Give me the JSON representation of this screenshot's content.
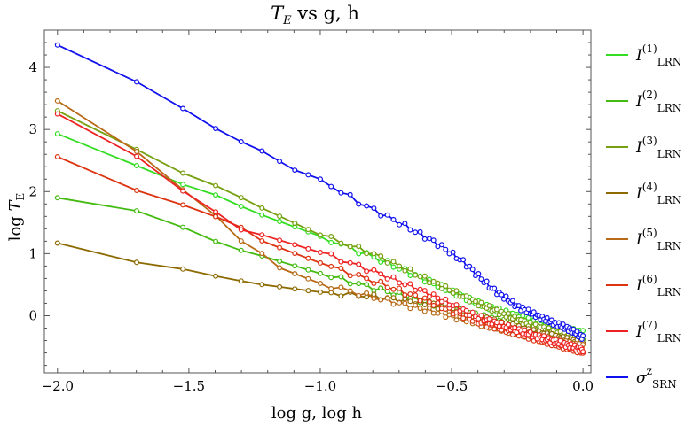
{
  "chart_data": {
    "type": "line",
    "title": {
      "main": "T",
      "main_sub": "E",
      "rest": " vs g, h"
    },
    "xlabel": "log g, log h",
    "ylabel": {
      "prefix": "log ",
      "main": "T",
      "sub": "E"
    },
    "xlim": [
      -2.05,
      0.03
    ],
    "ylim": [
      -0.92,
      4.6
    ],
    "xticks": [
      -2.0,
      -1.5,
      -1.0,
      -0.5,
      0.0
    ],
    "xtick_labels": [
      "−2.0",
      "−1.5",
      "−1.0",
      "−0.5",
      "0.0"
    ],
    "yticks": [
      0,
      1,
      2,
      3,
      4
    ],
    "ytick_labels": [
      "0",
      "1",
      "2",
      "3",
      "4"
    ],
    "grid": false,
    "legend_position": "right",
    "series": [
      {
        "name": "I(1)LRN",
        "label_main": "I",
        "label_sup": "(1)",
        "label_sub": "LRN",
        "color": "#33dd22",
        "anchors": [
          [
            -2.0,
            2.93
          ],
          [
            -1.7,
            2.42
          ],
          [
            -1.52,
            2.11
          ],
          [
            -1.4,
            1.95
          ],
          [
            -1.3,
            1.76
          ],
          [
            -1.22,
            1.62
          ],
          [
            -1.0,
            1.28
          ],
          [
            -0.8,
            0.95
          ],
          [
            -0.6,
            0.58
          ],
          [
            -0.4,
            0.2
          ],
          [
            -0.2,
            -0.08
          ],
          [
            -0.1,
            -0.18
          ],
          [
            0.0,
            -0.28
          ]
        ]
      },
      {
        "name": "I(2)LRN",
        "label_main": "I",
        "label_sup": "(2)",
        "label_sub": "LRN",
        "color": "#44bb11",
        "anchors": [
          [
            -2.0,
            1.9
          ],
          [
            -1.7,
            1.69
          ],
          [
            -1.52,
            1.42
          ],
          [
            -1.4,
            1.2
          ],
          [
            -1.3,
            1.05
          ],
          [
            -1.22,
            0.96
          ],
          [
            -1.0,
            0.68
          ],
          [
            -0.8,
            0.45
          ],
          [
            -0.6,
            0.23
          ],
          [
            -0.4,
            0.0
          ],
          [
            -0.2,
            -0.2
          ],
          [
            0.0,
            -0.38
          ]
        ]
      },
      {
        "name": "I(3)LRN",
        "label_main": "I",
        "label_sup": "(3)",
        "label_sub": "LRN",
        "color": "#77a010",
        "anchors": [
          [
            -2.0,
            3.3
          ],
          [
            -1.7,
            2.68
          ],
          [
            -1.52,
            2.29
          ],
          [
            -1.4,
            2.1
          ],
          [
            -1.3,
            1.9
          ],
          [
            -1.22,
            1.73
          ],
          [
            -1.0,
            1.3
          ],
          [
            -0.8,
            1.0
          ],
          [
            -0.6,
            0.6
          ],
          [
            -0.4,
            0.2
          ],
          [
            -0.2,
            -0.15
          ],
          [
            0.0,
            -0.4
          ]
        ]
      },
      {
        "name": "I(4)LRN",
        "label_main": "I",
        "label_sup": "(4)",
        "label_sub": "LRN",
        "color": "#8c6a00",
        "anchors": [
          [
            -2.0,
            1.17
          ],
          [
            -1.7,
            0.86
          ],
          [
            -1.52,
            0.75
          ],
          [
            -1.4,
            0.64
          ],
          [
            -1.3,
            0.56
          ],
          [
            -1.22,
            0.5
          ],
          [
            -1.0,
            0.38
          ],
          [
            -0.8,
            0.31
          ],
          [
            -0.6,
            0.2
          ],
          [
            -0.4,
            -0.02
          ],
          [
            -0.2,
            -0.25
          ],
          [
            0.0,
            -0.45
          ]
        ]
      },
      {
        "name": "I(5)LRN",
        "label_main": "I",
        "label_sup": "(5)",
        "label_sub": "LRN",
        "color": "#b86a18",
        "anchors": [
          [
            -2.0,
            3.46
          ],
          [
            -1.7,
            2.65
          ],
          [
            -1.52,
            2.02
          ],
          [
            -1.4,
            1.62
          ],
          [
            -1.3,
            1.2
          ],
          [
            -1.22,
            1.0
          ],
          [
            -1.16,
            0.78
          ],
          [
            -1.0,
            0.52
          ],
          [
            -0.8,
            0.3
          ],
          [
            -0.6,
            0.1
          ],
          [
            -0.4,
            -0.12
          ],
          [
            -0.2,
            -0.33
          ],
          [
            0.0,
            -0.5
          ]
        ]
      },
      {
        "name": "I(6)LRN",
        "label_main": "I",
        "label_sup": "(6)",
        "label_sub": "LRN",
        "color": "#dd3311",
        "anchors": [
          [
            -2.0,
            2.56
          ],
          [
            -1.7,
            2.02
          ],
          [
            -1.52,
            1.78
          ],
          [
            -1.4,
            1.6
          ],
          [
            -1.3,
            1.42
          ],
          [
            -1.22,
            1.2
          ],
          [
            -1.0,
            0.85
          ],
          [
            -0.8,
            0.56
          ],
          [
            -0.6,
            0.25
          ],
          [
            -0.4,
            -0.1
          ],
          [
            -0.2,
            -0.35
          ],
          [
            0.0,
            -0.58
          ]
        ]
      },
      {
        "name": "I(7)LRN",
        "label_main": "I",
        "label_sup": "(7)",
        "label_sub": "LRN",
        "color": "#ee2222",
        "anchors": [
          [
            -2.0,
            3.25
          ],
          [
            -1.7,
            2.57
          ],
          [
            -1.52,
            2.0
          ],
          [
            -1.4,
            1.68
          ],
          [
            -1.3,
            1.38
          ],
          [
            -1.22,
            1.3
          ],
          [
            -1.0,
            1.02
          ],
          [
            -0.8,
            0.72
          ],
          [
            -0.6,
            0.38
          ],
          [
            -0.4,
            -0.02
          ],
          [
            -0.2,
            -0.3
          ],
          [
            0.0,
            -0.55
          ]
        ]
      },
      {
        "name": "σzSRN",
        "label_main": "σ",
        "label_sup": "z",
        "label_sub": "SRN",
        "color": "#1111ee",
        "anchors": [
          [
            -2.0,
            4.36
          ],
          [
            -1.7,
            3.77
          ],
          [
            -1.52,
            3.33
          ],
          [
            -1.4,
            3.02
          ],
          [
            -1.3,
            2.8
          ],
          [
            -1.22,
            2.65
          ],
          [
            -1.1,
            2.35
          ],
          [
            -1.0,
            2.2
          ],
          [
            -0.85,
            1.82
          ],
          [
            -0.7,
            1.5
          ],
          [
            -0.55,
            1.15
          ],
          [
            -0.45,
            0.85
          ],
          [
            -0.35,
            0.45
          ],
          [
            -0.25,
            0.15
          ],
          [
            -0.15,
            -0.05
          ],
          [
            -0.05,
            -0.22
          ],
          [
            0.0,
            -0.35
          ]
        ]
      }
    ]
  }
}
